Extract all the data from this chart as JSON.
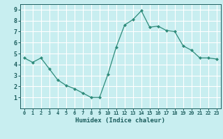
{
  "x": [
    0,
    1,
    2,
    3,
    4,
    5,
    6,
    7,
    8,
    9,
    10,
    11,
    12,
    13,
    14,
    15,
    16,
    17,
    18,
    19,
    20,
    21,
    22,
    23
  ],
  "y": [
    4.6,
    4.2,
    4.6,
    3.6,
    2.6,
    2.1,
    1.8,
    1.4,
    1.0,
    1.0,
    3.1,
    5.6,
    7.6,
    8.1,
    8.9,
    7.4,
    7.5,
    7.1,
    7.0,
    5.7,
    5.3,
    4.6,
    4.6,
    4.5
  ],
  "line_color": "#2e8b7a",
  "marker_color": "#2e8b7a",
  "bg_color": "#c8eef0",
  "grid_color": "#ffffff",
  "xlabel": "Humidex (Indice chaleur)",
  "xlabel_color": "#1a5c5c",
  "tick_color": "#1a5c5c",
  "ylim": [
    0,
    9.5
  ],
  "xlim": [
    -0.5,
    23.5
  ],
  "yticks": [
    1,
    2,
    3,
    4,
    5,
    6,
    7,
    8,
    9
  ],
  "xticks": [
    0,
    1,
    2,
    3,
    4,
    5,
    6,
    7,
    8,
    9,
    10,
    11,
    12,
    13,
    14,
    15,
    16,
    17,
    18,
    19,
    20,
    21,
    22,
    23
  ],
  "xtick_labels": [
    "0",
    "1",
    "2",
    "3",
    "4",
    "5",
    "6",
    "7",
    "8",
    "9",
    "10",
    "11",
    "12",
    "13",
    "14",
    "15",
    "16",
    "17",
    "18",
    "19",
    "20",
    "21",
    "22",
    "23"
  ]
}
